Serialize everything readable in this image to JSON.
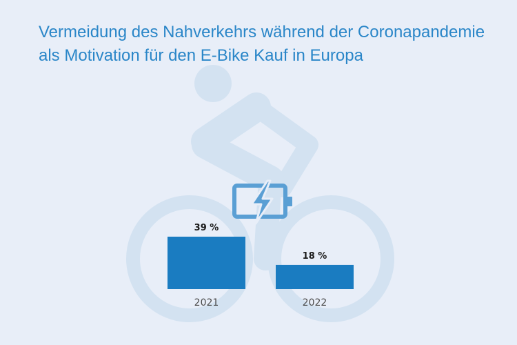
{
  "chart_data": {
    "type": "bar",
    "title": "Vermeidung des Nahverkehrs während der Coronapandemie als Motivation für den E-Bike Kauf in Europa",
    "title_lines": [
      "Vermeidung des Nahverkehrs während der Coronapandemie",
      "als Motivation für den E-Bike Kauf in Europa"
    ],
    "categories": [
      "2021",
      "2022"
    ],
    "values": [
      39,
      18
    ],
    "value_labels": [
      "39 %",
      "18 %"
    ],
    "unit": "%",
    "ylim": [
      0,
      39
    ],
    "grid": false,
    "legend": "none",
    "bar_color": "#1a7cc1"
  },
  "background": {
    "color": "#e8eef8",
    "illustration_color": "#d3e2f1",
    "illustration": "cyclist-on-bicycle",
    "battery_icon": "battery-charging-icon",
    "battery_color": "#5a9fd4"
  },
  "title_color": "#2a86c8"
}
